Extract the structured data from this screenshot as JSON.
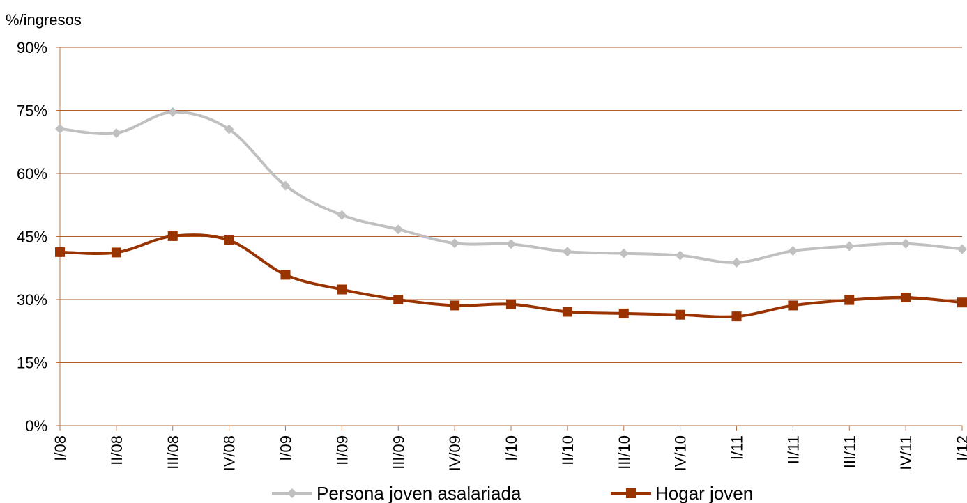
{
  "chart_data": {
    "type": "line",
    "ylabel": "%/ingresos",
    "ylim": [
      0,
      90
    ],
    "yticks": [
      "0%",
      "15%",
      "30%",
      "45%",
      "60%",
      "75%",
      "90%"
    ],
    "ytick_values": [
      0,
      15,
      30,
      45,
      60,
      75,
      90
    ],
    "categories": [
      "I/08",
      "II/08",
      "III/08",
      "IV/08",
      "I/09",
      "II/09",
      "III/09",
      "IV/09",
      "I/10",
      "II/10",
      "III/10",
      "IV/10",
      "I/11",
      "II/11",
      "III/11",
      "IV/11",
      "I/12"
    ],
    "grid": true,
    "legend_position": "bottom",
    "series": [
      {
        "name": "Persona joven asalariada",
        "color": "#c0c0c0",
        "marker": "diamond",
        "values": [
          70.6,
          69.6,
          74.6,
          70.5,
          57.1,
          50.1,
          46.7,
          43.4,
          43.2,
          41.4,
          41.0,
          40.5,
          38.8,
          41.6,
          42.7,
          43.3,
          42.0
        ]
      },
      {
        "name": "Hogar joven",
        "color": "#993300",
        "marker": "square",
        "values": [
          41.3,
          41.2,
          45.1,
          44.1,
          35.9,
          32.4,
          30.0,
          28.6,
          28.9,
          27.1,
          26.7,
          26.4,
          26.0,
          28.6,
          29.9,
          30.5,
          29.3
        ]
      }
    ]
  }
}
